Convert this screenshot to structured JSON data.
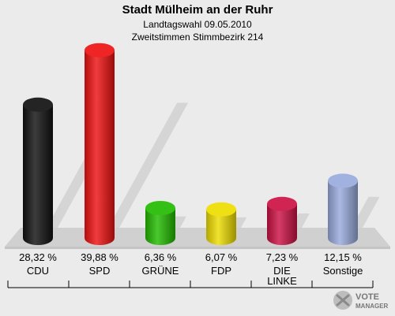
{
  "header": {
    "title": "Stadt Mülheim an der Ruhr",
    "subtitle1": "Landtagswahl 09.05.2010",
    "subtitle2": "Zweitstimmen Stimmbezirk 214"
  },
  "logo": {
    "line1": "VOTE",
    "line2": "MANAGER",
    "icon": "ballot-cross-icon"
  },
  "chart_data": {
    "type": "bar",
    "categories": [
      "CDU",
      "SPD",
      "GRÜNE",
      "FDP",
      "DIE LINKE",
      "Sonstige"
    ],
    "values": [
      28.32,
      39.88,
      6.36,
      6.07,
      7.23,
      12.15
    ],
    "value_labels": [
      "28,32 %",
      "39,88 %",
      "6,36 %",
      "6,07 %",
      "7,23 %",
      "12,15 %"
    ],
    "colors": [
      "#111111",
      "#ee1111",
      "#22bb00",
      "#eedd00",
      "#cc1144",
      "#99aadd"
    ],
    "title": "Stadt Mülheim an der Ruhr",
    "xlabel": "",
    "ylabel": "",
    "ylim": [
      0,
      40
    ],
    "grid": false,
    "legend": "none"
  }
}
